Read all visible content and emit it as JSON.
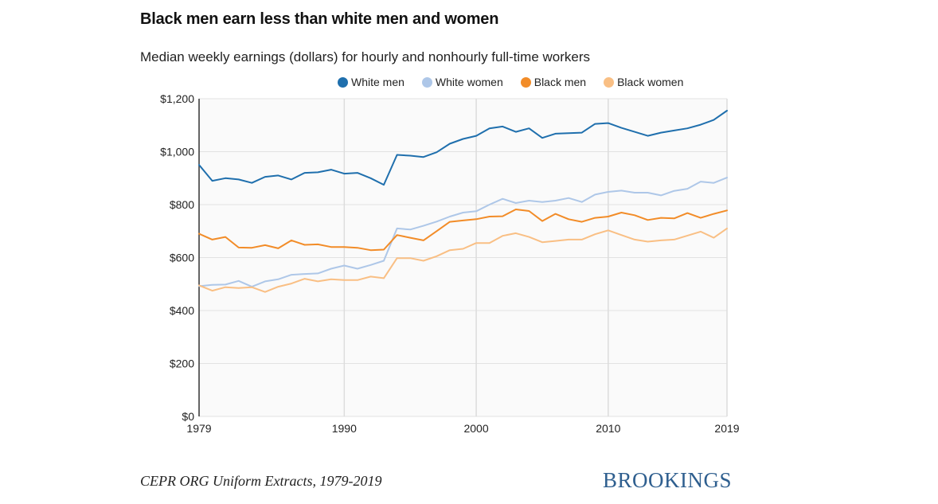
{
  "title": "Black men earn less than white men and women",
  "subtitle": "Median weekly earnings (dollars) for hourly and nonhourly full-time workers",
  "source": "CEPR ORG Uniform Extracts, 1979-2019",
  "logo": "BROOKINGS",
  "chart_data": {
    "type": "line",
    "title": "Black men earn less than white men and women",
    "subtitle": "Median weekly earnings (dollars) for hourly and nonhourly full-time workers",
    "xlabel": "",
    "ylabel": "",
    "xlim": [
      1979,
      2019
    ],
    "ylim": [
      0,
      1200
    ],
    "x_ticks": [
      1979,
      1990,
      2000,
      2010,
      2019
    ],
    "y_ticks": [
      0,
      200,
      400,
      600,
      800,
      1000,
      1200
    ],
    "y_tick_labels": [
      "$0",
      "$200",
      "$400",
      "$600",
      "$800",
      "$1,000",
      "$1,200"
    ],
    "grid": true,
    "legend_position": "top",
    "x": [
      1979,
      1980,
      1981,
      1982,
      1983,
      1984,
      1985,
      1986,
      1987,
      1988,
      1989,
      1990,
      1991,
      1992,
      1993,
      1994,
      1995,
      1996,
      1997,
      1998,
      1999,
      2000,
      2001,
      2002,
      2003,
      2004,
      2005,
      2006,
      2007,
      2008,
      2009,
      2010,
      2011,
      2012,
      2013,
      2014,
      2015,
      2016,
      2017,
      2018,
      2019
    ],
    "series": [
      {
        "name": "White men",
        "color": "#1f6fad",
        "values": [
          950,
          890,
          900,
          895,
          882,
          905,
          910,
          895,
          920,
          922,
          932,
          917,
          920,
          900,
          875,
          988,
          985,
          980,
          998,
          1030,
          1048,
          1060,
          1088,
          1095,
          1075,
          1088,
          1052,
          1068,
          1070,
          1072,
          1105,
          1108,
          1090,
          1075,
          1060,
          1072,
          1080,
          1088,
          1102,
          1120,
          1155
        ]
      },
      {
        "name": "White women",
        "color": "#aec7e8",
        "values": [
          492,
          497,
          498,
          512,
          490,
          510,
          518,
          535,
          538,
          540,
          558,
          570,
          558,
          572,
          588,
          710,
          706,
          720,
          736,
          755,
          770,
          775,
          800,
          822,
          806,
          815,
          810,
          815,
          825,
          810,
          838,
          848,
          853,
          845,
          845,
          835,
          852,
          860,
          887,
          882,
          902
        ]
      },
      {
        "name": "Black men",
        "color": "#f28c28",
        "values": [
          690,
          668,
          678,
          638,
          637,
          647,
          635,
          665,
          648,
          650,
          640,
          640,
          637,
          628,
          630,
          685,
          675,
          665,
          700,
          735,
          740,
          745,
          755,
          756,
          782,
          776,
          738,
          765,
          745,
          735,
          750,
          755,
          770,
          760,
          742,
          750,
          748,
          768,
          750,
          765,
          778
        ]
      },
      {
        "name": "Black women",
        "color": "#f9bf84",
        "values": [
          495,
          475,
          488,
          485,
          488,
          470,
          490,
          502,
          520,
          510,
          518,
          515,
          515,
          528,
          522,
          598,
          598,
          588,
          605,
          628,
          633,
          655,
          655,
          682,
          692,
          678,
          658,
          663,
          668,
          668,
          688,
          703,
          685,
          668,
          660,
          665,
          668,
          683,
          698,
          675,
          710
        ]
      }
    ]
  }
}
